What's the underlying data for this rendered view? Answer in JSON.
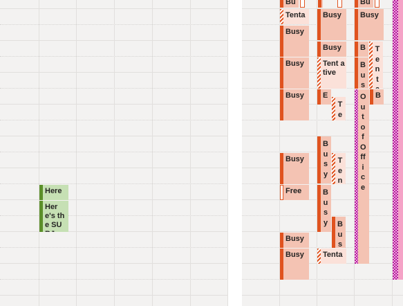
{
  "left_pane": {
    "appointments": [
      {
        "subject": "Here",
        "style": "green"
      },
      {
        "subject": "Here's the SUBJ",
        "style": "green"
      }
    ]
  },
  "right_pane": {
    "appointments": [
      {
        "subject": "Bu",
        "style": "busy"
      },
      {
        "subject": "Tenta",
        "style": "tentative"
      },
      {
        "subject": "Busy",
        "style": "busy"
      },
      {
        "subject": "Busy",
        "style": "busy"
      },
      {
        "subject": "Busy",
        "style": "busy"
      },
      {
        "subject": "Busy",
        "style": "busy"
      },
      {
        "subject": "Free",
        "style": "free"
      },
      {
        "subject": "Busy",
        "style": "busy"
      },
      {
        "subject": "Busy",
        "style": "busy"
      },
      {
        "subject": "Busy",
        "style": "busy"
      },
      {
        "subject": "Busy",
        "style": "busy"
      },
      {
        "subject": "Tent ative",
        "style": "tentative"
      },
      {
        "subject": "E",
        "style": "busy"
      },
      {
        "subject": "Te",
        "style": "tentative"
      },
      {
        "subject": "Busy",
        "style": "busy"
      },
      {
        "subject": "Ten",
        "style": "tentative"
      },
      {
        "subject": "Busy",
        "style": "busy"
      },
      {
        "subject": "Bus",
        "style": "busy"
      },
      {
        "subject": "Tenta",
        "style": "tentative"
      },
      {
        "subject": "Bu",
        "style": "busy"
      },
      {
        "subject": "Busy",
        "style": "busy"
      },
      {
        "subject": "B",
        "style": "busy"
      },
      {
        "subject": "Tenta",
        "style": "tentative"
      },
      {
        "subject": "Bus",
        "style": "busy"
      },
      {
        "subject": "Out of Office",
        "style": "out-of-office"
      },
      {
        "subject": "B",
        "style": "busy"
      }
    ]
  },
  "colors": {
    "busy_fill": "#f4c3b3",
    "busy_bar": "#e0531f",
    "tentative_fill": "#fbe1d9",
    "out_of_office": "#b3209a",
    "green_fill": "#c6e0b4",
    "green_bar": "#5b8f2a",
    "grid_background": "#f3f2f1"
  }
}
